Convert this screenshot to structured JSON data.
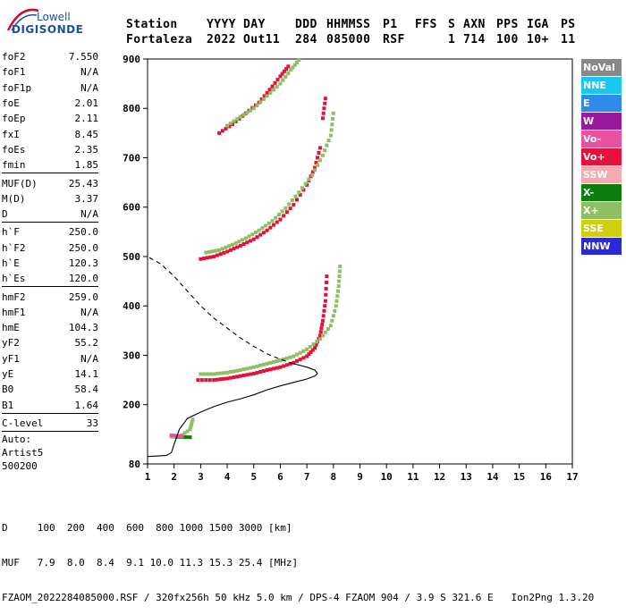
{
  "logo": {
    "line1": "Lowell",
    "line2": "DIGISONDE"
  },
  "header": {
    "labels": [
      "Station",
      "YYYY",
      "DAY",
      "DDD",
      "HHMMSS",
      "P1",
      "FFS",
      "S",
      "AXN",
      "PPS",
      "IGA",
      "PS"
    ],
    "values": [
      "Fortaleza",
      "2022",
      "Out11",
      "284",
      "085000",
      "RSF",
      "",
      "1",
      "714",
      "100",
      "10+",
      "11"
    ]
  },
  "params": [
    {
      "name": "foF2",
      "value": "7.550"
    },
    {
      "name": "foF1",
      "value": "N/A"
    },
    {
      "name": "foF1p",
      "value": "N/A"
    },
    {
      "name": "foE",
      "value": "2.01"
    },
    {
      "name": "foEp",
      "value": "2.11"
    },
    {
      "name": "fxI",
      "value": "8.45"
    },
    {
      "name": "foEs",
      "value": "2.35"
    },
    {
      "name": "fmin",
      "value": "1.85"
    },
    {
      "sep": true
    },
    {
      "name": "MUF(D)",
      "value": "25.43"
    },
    {
      "name": "M(D)",
      "value": "3.37"
    },
    {
      "name": "D",
      "value": "N/A"
    },
    {
      "sep": true
    },
    {
      "name": "h`F",
      "value": "250.0"
    },
    {
      "name": "h`F2",
      "value": "250.0"
    },
    {
      "name": "h`E",
      "value": "120.3"
    },
    {
      "name": "h`Es",
      "value": "120.0"
    },
    {
      "sep": true
    },
    {
      "name": "hmF2",
      "value": "259.0"
    },
    {
      "name": "hmF1",
      "value": "N/A"
    },
    {
      "name": "hmE",
      "value": "104.3"
    },
    {
      "name": "yF2",
      "value": "55.2"
    },
    {
      "name": "yF1",
      "value": "N/A"
    },
    {
      "name": "yE",
      "value": "14.1"
    },
    {
      "name": "B0",
      "value": "58.4"
    },
    {
      "name": "B1",
      "value": "1.64"
    },
    {
      "sep": true
    },
    {
      "name": "C-level",
      "value": "33"
    },
    {
      "sep": true
    }
  ],
  "auto": {
    "line1": "Auto:",
    "line2": "Artist5",
    "line3": "500200"
  },
  "legend": [
    {
      "label": "NoVal",
      "color": "#888888"
    },
    {
      "label": "NNE",
      "color": "#19c7f0"
    },
    {
      "label": "E",
      "color": "#2f8ae8"
    },
    {
      "label": "W",
      "color": "#9b1a9b"
    },
    {
      "label": "Vo-",
      "color": "#e9509d"
    },
    {
      "label": "Vo+",
      "color": "#e8103a"
    },
    {
      "label": "SSW",
      "color": "#f3aab0"
    },
    {
      "label": "X-",
      "color": "#0d7d0d"
    },
    {
      "label": "X+",
      "color": "#8cc063"
    },
    {
      "label": "SSE",
      "color": "#cfcf10"
    },
    {
      "label": "NNW",
      "color": "#2a2ad8"
    }
  ],
  "footer": {
    "row1": "D     100  200  400  600  800 1000 1500 3000 [km]",
    "row2": "MUF   7.9  8.0  8.4  9.1 10.0 11.3 15.3 25.4 [MHz]",
    "row3": "FZAOM_2022284085000.RSF / 320fx256h 50 kHz 5.0 km / DPS-4 FZAOM 904 / 3.9 S 321.6 E   Ion2Png 1.3.20"
  },
  "chart_data": {
    "type": "scatter",
    "xlim": [
      1,
      17
    ],
    "ylim": [
      80,
      900
    ],
    "xticks": [
      1,
      2,
      3,
      4,
      5,
      6,
      7,
      8,
      9,
      10,
      11,
      12,
      13,
      14,
      15,
      16,
      17
    ],
    "yticks": [
      80,
      200,
      300,
      400,
      500,
      600,
      700,
      800,
      900
    ],
    "series": [
      {
        "name": "Vo+",
        "color": "#e8103a",
        "points": [
          [
            2.9,
            250
          ],
          [
            3.5,
            250
          ],
          [
            4.0,
            253
          ],
          [
            4.5,
            258
          ],
          [
            5.0,
            263
          ],
          [
            5.5,
            270
          ],
          [
            6.0,
            276
          ],
          [
            6.5,
            285
          ],
          [
            7.0,
            298
          ],
          [
            7.3,
            315
          ],
          [
            7.5,
            340
          ],
          [
            7.6,
            370
          ],
          [
            7.7,
            410
          ],
          [
            7.75,
            460
          ],
          [
            3.0,
            495
          ],
          [
            3.5,
            500
          ],
          [
            4.0,
            510
          ],
          [
            4.5,
            522
          ],
          [
            5.0,
            535
          ],
          [
            5.5,
            553
          ],
          [
            6.0,
            575
          ],
          [
            6.5,
            605
          ],
          [
            7.0,
            645
          ],
          [
            7.3,
            680
          ],
          [
            7.5,
            720
          ],
          [
            7.6,
            780
          ],
          [
            7.7,
            820
          ],
          [
            3.7,
            750
          ],
          [
            4.2,
            768
          ],
          [
            4.7,
            790
          ],
          [
            5.2,
            812
          ],
          [
            5.6,
            838
          ],
          [
            6.0,
            865
          ],
          [
            6.3,
            885
          ]
        ]
      },
      {
        "name": "X+",
        "color": "#8cc063",
        "points": [
          [
            3.0,
            262
          ],
          [
            3.5,
            262
          ],
          [
            4.0,
            265
          ],
          [
            4.5,
            270
          ],
          [
            5.0,
            276
          ],
          [
            5.5,
            283
          ],
          [
            6.0,
            290
          ],
          [
            6.5,
            298
          ],
          [
            7.0,
            312
          ],
          [
            7.5,
            333
          ],
          [
            7.9,
            360
          ],
          [
            8.1,
            400
          ],
          [
            8.2,
            440
          ],
          [
            8.25,
            480
          ],
          [
            3.2,
            508
          ],
          [
            3.7,
            513
          ],
          [
            4.2,
            524
          ],
          [
            4.7,
            537
          ],
          [
            5.2,
            553
          ],
          [
            5.7,
            572
          ],
          [
            6.2,
            598
          ],
          [
            6.7,
            630
          ],
          [
            7.2,
            665
          ],
          [
            7.6,
            705
          ],
          [
            7.9,
            745
          ],
          [
            8.0,
            790
          ],
          [
            4.0,
            765
          ],
          [
            4.5,
            783
          ],
          [
            5.0,
            800
          ],
          [
            5.5,
            825
          ],
          [
            6.0,
            850
          ],
          [
            6.4,
            878
          ],
          [
            6.7,
            898
          ],
          [
            1.9,
            135
          ],
          [
            2.2,
            135
          ],
          [
            2.6,
            150
          ],
          [
            2.7,
            170
          ]
        ]
      },
      {
        "name": "X-",
        "color": "#0d7d0d",
        "points": [
          [
            2.1,
            135
          ],
          [
            2.6,
            134
          ]
        ]
      },
      {
        "name": "Vo-",
        "color": "#e9509d",
        "points": [
          [
            1.9,
            138
          ],
          [
            2.3,
            136
          ]
        ]
      }
    ],
    "lines": [
      {
        "name": "profile",
        "style": "solid",
        "points": [
          [
            1.0,
            95
          ],
          [
            1.7,
            97
          ],
          [
            1.9,
            103
          ],
          [
            2.0,
            120
          ],
          [
            2.2,
            150
          ],
          [
            2.5,
            172
          ],
          [
            3.0,
            185
          ],
          [
            3.5,
            196
          ],
          [
            4.0,
            205
          ],
          [
            4.5,
            212
          ],
          [
            5.0,
            220
          ],
          [
            5.5,
            230
          ],
          [
            6.0,
            238
          ],
          [
            6.5,
            245
          ],
          [
            7.0,
            252
          ],
          [
            7.3,
            258
          ],
          [
            7.4,
            263
          ],
          [
            7.3,
            270
          ],
          [
            7.0,
            276
          ],
          [
            6.5,
            283
          ]
        ]
      },
      {
        "name": "extrapolation",
        "style": "dashed",
        "points": [
          [
            6.5,
            283
          ],
          [
            6.0,
            292
          ],
          [
            5.5,
            303
          ],
          [
            5.0,
            318
          ],
          [
            4.5,
            335
          ],
          [
            4.0,
            355
          ],
          [
            3.5,
            375
          ],
          [
            3.0,
            400
          ],
          [
            2.5,
            430
          ],
          [
            2.0,
            460
          ],
          [
            1.5,
            485
          ],
          [
            1.0,
            500
          ]
        ]
      }
    ]
  }
}
